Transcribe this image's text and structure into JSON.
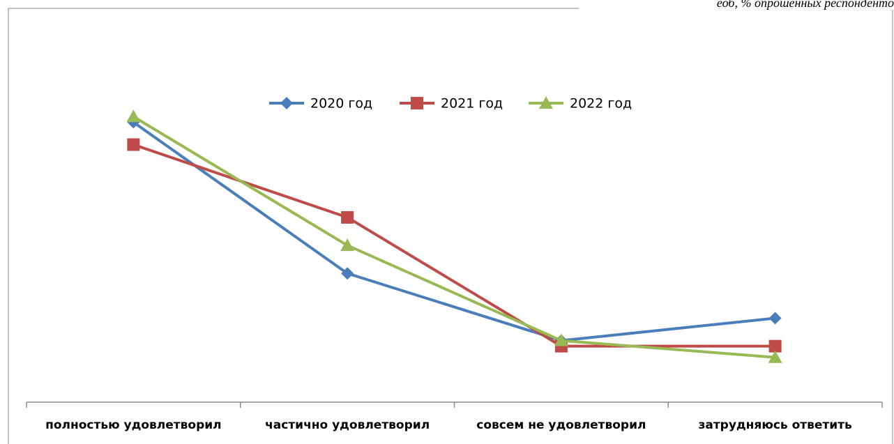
{
  "chart_data": {
    "type": "line",
    "title": "еоб, % опрошенных респонденто",
    "categories": [
      "полностью удовлетворил",
      "частично удовлетворил",
      "совсем не удовлетворил",
      "затрудняюсь ответить"
    ],
    "series": [
      {
        "name": "2020 год",
        "color": "#4a7ebb",
        "marker": "diamond",
        "values": [
          50,
          23,
          11,
          15
        ]
      },
      {
        "name": "2021 год",
        "color": "#be4b48",
        "marker": "square",
        "values": [
          46,
          33,
          10,
          10
        ]
      },
      {
        "name": "2022 год",
        "color": "#98b954",
        "marker": "triangle",
        "values": [
          51,
          28,
          11,
          8
        ]
      }
    ],
    "ylim": [
      0,
      60
    ],
    "legend": "top"
  }
}
